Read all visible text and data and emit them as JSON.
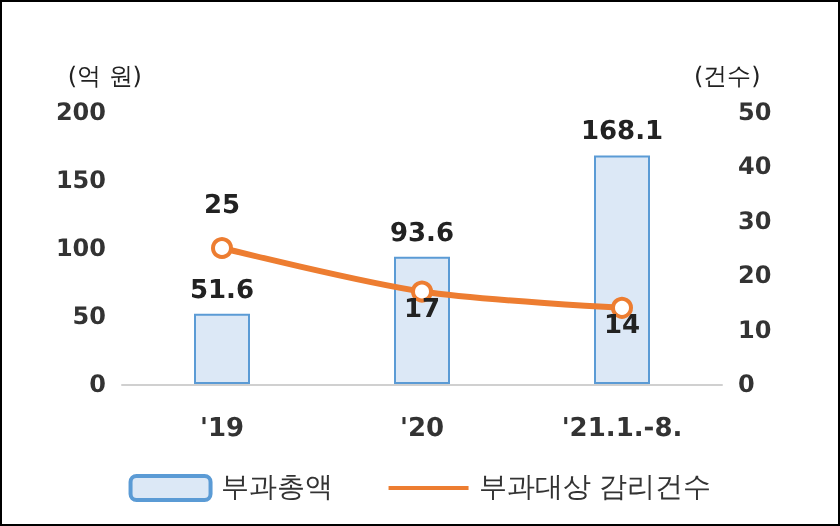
{
  "chart_data": {
    "type": "bar",
    "ylabel": "(억 원)",
    "y2label": "(건수)",
    "categories": [
      "'19",
      "'20",
      "'21.1.-8."
    ],
    "series": [
      {
        "name": "부과총액",
        "color": "#dce8f6",
        "values": [
          51.6,
          93.6,
          168.1
        ]
      },
      {
        "name": "부과대상 감리건수",
        "type": "line",
        "axis": "y2",
        "color": "#ed7d31",
        "values": [
          25,
          17,
          14
        ]
      }
    ],
    "ylim": [
      0,
      200
    ],
    "yticks": [
      0,
      50,
      100,
      150,
      200
    ],
    "y2lim": [
      0,
      50
    ],
    "y2ticks": [
      0,
      10,
      20,
      30,
      40,
      50
    ],
    "data_labels": true,
    "grid": false,
    "legend": "bottom",
    "marker": "circle",
    "line_style": "solid"
  }
}
